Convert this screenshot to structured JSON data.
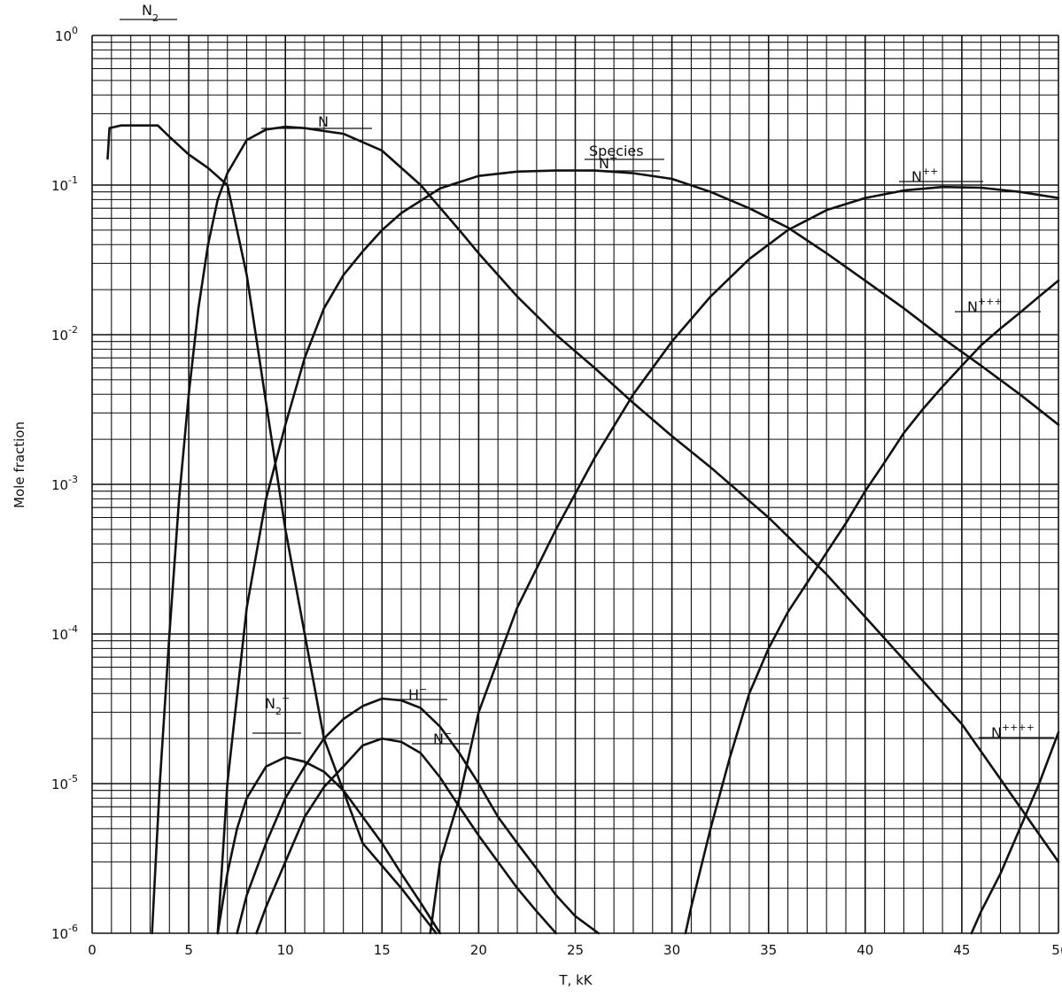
{
  "chart_data": {
    "type": "line",
    "title": "",
    "xlabel": "T, kK",
    "ylabel": "Mole fraction",
    "xlim": [
      0,
      50
    ],
    "ylim": [
      1e-06,
      1
    ],
    "yscale": "log",
    "grid": true,
    "x_ticks": [
      "0",
      "5",
      "10",
      "15",
      "20",
      "25",
      "30",
      "35",
      "40",
      "45",
      "5("
    ],
    "y_ticks": [
      {
        "base": "10",
        "exp": "0"
      },
      {
        "base": "10",
        "exp": "-1"
      },
      {
        "base": "10",
        "exp": "-2"
      },
      {
        "base": "10",
        "exp": "-3"
      },
      {
        "base": "10",
        "exp": "-4"
      },
      {
        "base": "10",
        "exp": "-5"
      },
      {
        "base": "10",
        "exp": "-6"
      }
    ],
    "annotations": [
      {
        "text": "Species",
        "x": 27,
        "y": 0.22
      }
    ],
    "series": [
      {
        "name": "N2",
        "label": "N",
        "sub": "2",
        "sup": "",
        "x": [
          0.8,
          0.9,
          1.5,
          2.5,
          3.4,
          4.0,
          5.0,
          6.0,
          7.0,
          8.0,
          9.0,
          10.0,
          12.0,
          14.0,
          16.0,
          17.8
        ],
        "y": [
          0.15,
          0.24,
          0.25,
          0.25,
          0.25,
          0.21,
          0.16,
          0.13,
          0.1,
          0.025,
          0.0035,
          0.0005,
          2e-05,
          4e-06,
          2e-06,
          1e-06
        ]
      },
      {
        "name": "N",
        "label": "N",
        "sub": "",
        "sup": "",
        "x": [
          3.1,
          3.5,
          4.0,
          4.5,
          5.0,
          5.5,
          6.0,
          6.5,
          7.0,
          8.0,
          9.0,
          10.0,
          11.0,
          13.0,
          15.0,
          17.0,
          19.0,
          20.0,
          22.0,
          24.0,
          26.0,
          28.0,
          30.0,
          32.0,
          35.0,
          38.0,
          40.0,
          45.0,
          50.0
        ],
        "y": [
          1e-06,
          1e-05,
          0.0001,
          0.0008,
          0.004,
          0.015,
          0.04,
          0.08,
          0.12,
          0.2,
          0.235,
          0.245,
          0.24,
          0.22,
          0.17,
          0.1,
          0.05,
          0.035,
          0.018,
          0.01,
          0.006,
          0.0035,
          0.0021,
          0.0013,
          0.0006,
          0.00025,
          0.00013,
          2.5e-05,
          3e-06
        ]
      },
      {
        "name": "N+",
        "label": "N",
        "sub": "",
        "sup": "+",
        "x": [
          6.5,
          7.0,
          8.0,
          9.0,
          10.0,
          11.0,
          12.0,
          13.0,
          14.0,
          15.0,
          16.0,
          18.0,
          20.0,
          22.0,
          24.0,
          26.0,
          28.0,
          30.0,
          32.0,
          34.0,
          36.0,
          38.0,
          40.0,
          42.0,
          44.0,
          46.0,
          48.0,
          50.0
        ],
        "y": [
          1e-06,
          1e-05,
          0.00015,
          0.0008,
          0.0025,
          0.007,
          0.015,
          0.025,
          0.036,
          0.05,
          0.065,
          0.095,
          0.115,
          0.123,
          0.125,
          0.125,
          0.12,
          0.11,
          0.09,
          0.07,
          0.052,
          0.035,
          0.023,
          0.015,
          0.0095,
          0.0062,
          0.004,
          0.0025
        ]
      },
      {
        "name": "N++",
        "label": "N",
        "sub": "",
        "sup": "++",
        "x": [
          17.5,
          18.0,
          19.0,
          20.0,
          22.0,
          24.0,
          26.0,
          28.0,
          30.0,
          32.0,
          34.0,
          36.0,
          38.0,
          40.0,
          42.0,
          44.0,
          46.0,
          48.0,
          50.0
        ],
        "y": [
          1e-06,
          3e-06,
          8e-06,
          3e-05,
          0.00015,
          0.0005,
          0.0015,
          0.004,
          0.009,
          0.018,
          0.032,
          0.05,
          0.068,
          0.082,
          0.092,
          0.097,
          0.096,
          0.09,
          0.082
        ]
      },
      {
        "name": "N+++",
        "label": "N",
        "sub": "",
        "sup": "+++",
        "x": [
          30.7,
          31.0,
          32.0,
          33.0,
          34.0,
          35.0,
          36.0,
          37.0,
          38.0,
          39.0,
          40.0,
          41.0,
          42.0,
          43.0,
          44.0,
          45.0,
          46.0,
          47.0,
          48.0,
          49.0,
          50.0
        ],
        "y": [
          1e-06,
          1.5e-06,
          5e-06,
          1.5e-05,
          4e-05,
          8e-05,
          0.00014,
          0.00022,
          0.00035,
          0.00055,
          0.0009,
          0.0014,
          0.0022,
          0.0032,
          0.0045,
          0.0062,
          0.0085,
          0.011,
          0.014,
          0.018,
          0.023
        ]
      },
      {
        "name": "N++++",
        "label": "N",
        "sub": "",
        "sup": "++++",
        "x": [
          45.5,
          46.0,
          47.0,
          48.0,
          49.0,
          50.0
        ],
        "y": [
          1e-06,
          1.4e-06,
          2.5e-06,
          5e-06,
          1e-05,
          2.2e-05
        ]
      },
      {
        "name": "N2+",
        "label": "N",
        "sub": "2",
        "sup": "+",
        "x": [
          6.5,
          7.0,
          7.5,
          8.0,
          9.0,
          10.0,
          11.0,
          12.0,
          13.0,
          14.0,
          15.0,
          16.0,
          17.0,
          18.0
        ],
        "y": [
          1e-06,
          2.5e-06,
          5e-06,
          8e-06,
          1.3e-05,
          1.5e-05,
          1.4e-05,
          1.2e-05,
          9e-06,
          6e-06,
          4e-06,
          2.5e-06,
          1.6e-06,
          1e-06
        ]
      },
      {
        "name": "H-",
        "label": "H",
        "sub": "",
        "sup": "−",
        "x": [
          7.5,
          8.0,
          9.0,
          10.0,
          11.0,
          12.0,
          13.0,
          14.0,
          15.0,
          16.0,
          17.0,
          18.0,
          19.0,
          20.0,
          21.0,
          22.0,
          23.0,
          24.0,
          25.0,
          26.2
        ],
        "y": [
          1e-06,
          1.8e-06,
          4e-06,
          8e-06,
          1.3e-05,
          2e-05,
          2.7e-05,
          3.3e-05,
          3.7e-05,
          3.6e-05,
          3.2e-05,
          2.4e-05,
          1.6e-05,
          1e-05,
          6e-06,
          4e-06,
          2.7e-06,
          1.8e-06,
          1.3e-06,
          1e-06
        ]
      },
      {
        "name": "N-",
        "label": "N",
        "sub": "",
        "sup": "−",
        "x": [
          8.5,
          9.0,
          10.0,
          11.0,
          12.0,
          13.0,
          14.0,
          15.0,
          16.0,
          17.0,
          18.0,
          19.0,
          20.0,
          21.0,
          22.0,
          23.0,
          24.0
        ],
        "y": [
          1e-06,
          1.5e-06,
          3e-06,
          6e-06,
          9.5e-06,
          1.3e-05,
          1.8e-05,
          2e-05,
          1.9e-05,
          1.6e-05,
          1.1e-05,
          7e-06,
          4.5e-06,
          3e-06,
          2e-06,
          1.4e-06,
          1e-06
        ]
      }
    ]
  }
}
